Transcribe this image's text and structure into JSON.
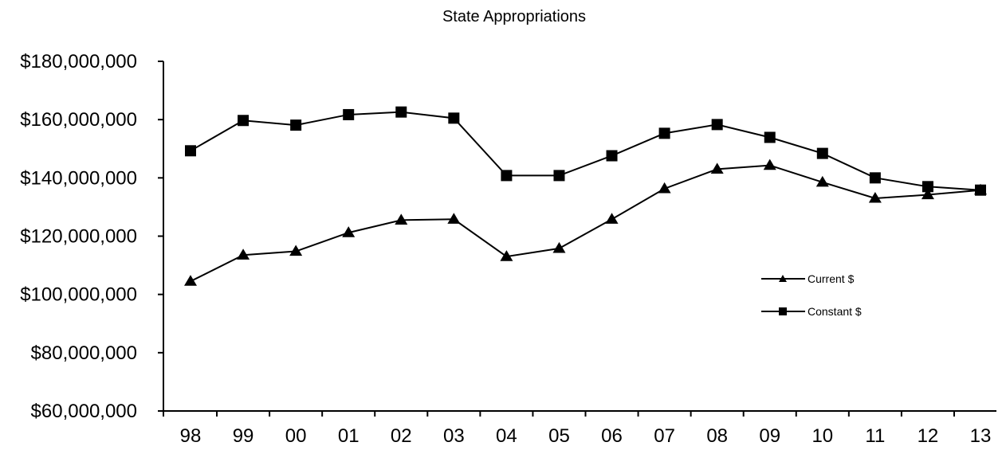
{
  "chart_data": {
    "type": "line",
    "title": "State Appropriations",
    "xlabel": "",
    "ylabel": "",
    "categories": [
      "98",
      "99",
      "00",
      "01",
      "02",
      "03",
      "04",
      "05",
      "06",
      "07",
      "08",
      "09",
      "10",
      "11",
      "12",
      "13"
    ],
    "ylim": [
      60000000,
      180000000
    ],
    "yticks": [
      60000000,
      80000000,
      100000000,
      120000000,
      140000000,
      160000000,
      180000000
    ],
    "ytick_labels": [
      "$60,000,000",
      "$80,000,000",
      "$100,000,000",
      "$120,000,000",
      "$140,000,000",
      "$160,000,000",
      "$180,000,000"
    ],
    "grid": false,
    "legend_position": "right",
    "series": [
      {
        "name": "Current $",
        "marker": "triangle",
        "color": "#000000",
        "values": [
          104500000,
          113500000,
          114800000,
          121200000,
          125500000,
          125800000,
          113000000,
          115800000,
          125800000,
          136300000,
          143000000,
          144300000,
          138500000,
          133000000,
          134200000,
          135800000
        ]
      },
      {
        "name": "Constant $",
        "marker": "square",
        "color": "#000000",
        "values": [
          149300000,
          159700000,
          158100000,
          161700000,
          162600000,
          160500000,
          140800000,
          140800000,
          147600000,
          155300000,
          158300000,
          153900000,
          148400000,
          140000000,
          137000000,
          135800000
        ]
      }
    ]
  }
}
